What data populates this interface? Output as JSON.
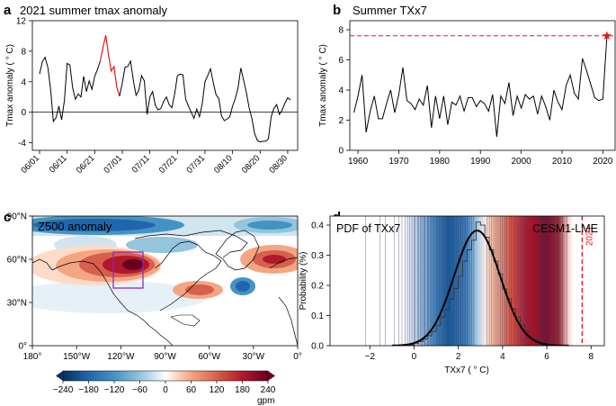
{
  "colors": {
    "line": "#000000",
    "highlight": "#e41a1c",
    "dashed": "#e41a1c",
    "purple_box": "#8b2bc2",
    "vlines": "#3a3a6a",
    "fit": "#000000"
  },
  "chart_data": [
    {
      "panel": "a",
      "type": "line",
      "title": "2021 summer tmax anomaly",
      "ylabel": "Tmax anomaly ( ° C)",
      "xlabel": "",
      "ylim": [
        -5,
        12
      ],
      "yticks": [
        -4,
        0,
        4,
        8,
        12
      ],
      "xticks": [
        "06/01",
        "06/11",
        "06/21",
        "07/01",
        "07/11",
        "07/21",
        "07/31",
        "08/10",
        "08/20",
        "08/30"
      ],
      "xtick_days": [
        1,
        11,
        21,
        31,
        41,
        51,
        61,
        71,
        81,
        91
      ],
      "zero_line": true,
      "days": [
        1,
        2,
        3,
        4,
        5,
        6,
        7,
        8,
        9,
        10,
        11,
        12,
        13,
        14,
        15,
        16,
        17,
        18,
        19,
        20,
        21,
        22,
        23,
        24,
        25,
        26,
        27,
        28,
        29,
        30,
        31,
        32,
        33,
        34,
        35,
        36,
        37,
        38,
        39,
        40,
        41,
        42,
        43,
        44,
        45,
        46,
        47,
        48,
        49,
        50,
        51,
        52,
        53,
        54,
        55,
        56,
        57,
        58,
        59,
        60,
        61,
        62,
        63,
        64,
        65,
        66,
        67,
        68,
        69,
        70,
        71,
        72,
        73,
        74,
        75,
        76,
        77,
        78,
        79,
        80,
        81,
        82,
        83,
        84,
        85,
        86,
        87,
        88,
        89,
        90,
        91,
        92
      ],
      "values": [
        5.0,
        6.6,
        7.2,
        5.9,
        3.0,
        -1.2,
        -0.7,
        0.8,
        -1.0,
        1.5,
        6.4,
        6.2,
        3.2,
        1.7,
        2.4,
        2.0,
        4.7,
        2.7,
        4.1,
        3.0,
        4.7,
        5.6,
        6.7,
        8.5,
        10.1,
        7.5,
        5.4,
        6.0,
        3.3,
        2.1,
        3.8,
        5.9,
        6.0,
        6.7,
        4.2,
        2.2,
        2.9,
        4.8,
        4.1,
        -0.3,
        2.0,
        2.7,
        0.9,
        0.3,
        0.5,
        1.4,
        2.0,
        1.0,
        0.6,
        2.4,
        4.8,
        5.0,
        4.9,
        1.7,
        0.8,
        0.0,
        -0.8,
        0.4,
        -0.6,
        1.1,
        4.0,
        4.8,
        5.7,
        3.9,
        2.3,
        1.8,
        -0.5,
        -1.1,
        -0.9,
        -0.6,
        0.8,
        1.8,
        3.2,
        5.8,
        4.2,
        2.6,
        0.6,
        -0.8,
        -2.8,
        -3.7,
        -3.9,
        -3.8,
        -3.8,
        -3.5,
        -0.6,
        0.5,
        1.0,
        -0.3,
        0.3,
        1.2,
        1.9,
        1.6
      ],
      "highlight_range": [
        22,
        29
      ]
    },
    {
      "panel": "b",
      "type": "line",
      "title": "Summer TXx7",
      "ylabel": "Tmax anomaly ( ° C)",
      "xlabel": "",
      "xlim": [
        1958,
        2023
      ],
      "ylim": [
        0,
        8.6
      ],
      "yticks": [
        0,
        2,
        4,
        6,
        8
      ],
      "xticks": [
        1960,
        1970,
        1980,
        1990,
        2000,
        2010,
        2020
      ],
      "years": [
        1959,
        1960,
        1961,
        1962,
        1963,
        1964,
        1965,
        1966,
        1967,
        1968,
        1969,
        1970,
        1971,
        1972,
        1973,
        1974,
        1975,
        1976,
        1977,
        1978,
        1979,
        1980,
        1981,
        1982,
        1983,
        1984,
        1985,
        1986,
        1987,
        1988,
        1989,
        1990,
        1991,
        1992,
        1993,
        1994,
        1995,
        1996,
        1997,
        1998,
        1999,
        2000,
        2001,
        2002,
        2003,
        2004,
        2005,
        2006,
        2007,
        2008,
        2009,
        2010,
        2011,
        2012,
        2013,
        2014,
        2015,
        2016,
        2017,
        2018,
        2019,
        2020,
        2021
      ],
      "values": [
        2.5,
        3.6,
        5.0,
        1.2,
        2.6,
        3.6,
        2.1,
        2.1,
        3.1,
        4.0,
        2.5,
        3.7,
        5.5,
        3.3,
        3.1,
        2.7,
        3.4,
        3.0,
        4.3,
        1.5,
        3.6,
        2.1,
        3.6,
        1.7,
        3.2,
        3.0,
        3.6,
        2.6,
        3.5,
        3.5,
        2.9,
        3.3,
        3.1,
        2.6,
        3.7,
        0.9,
        3.6,
        3.1,
        4.5,
        2.3,
        3.6,
        2.8,
        3.7,
        3.4,
        3.6,
        2.4,
        3.6,
        2.9,
        2.0,
        4.0,
        3.2,
        2.7,
        4.3,
        5.0,
        3.8,
        3.4,
        6.1,
        5.3,
        4.4,
        3.5,
        3.3,
        3.4,
        7.6
      ],
      "dashed_level": 7.6,
      "star_year": 2021
    },
    {
      "panel": "c",
      "type": "heatmap",
      "title": "Z500 anomaly",
      "colorbar_label": "gpm",
      "colorbar_ticks": [
        "−240",
        "−180",
        "−120",
        "−60",
        "0",
        "60",
        "120",
        "180",
        "240"
      ],
      "lat_ticks": [
        "90°N",
        "60°N",
        "30°N",
        "0°"
      ],
      "lon_ticks": [
        "180°",
        "150°W",
        "120°W",
        "90°W",
        "60°W",
        "30°W",
        "0°"
      ]
    },
    {
      "panel": "d",
      "type": "bar",
      "title": "PDF of TXx7",
      "model_label": "CESM1-LME",
      "ylabel": "Probability (%)",
      "xlabel": "TXx7 ( ° C)",
      "xlim": [
        -3.8,
        8.6
      ],
      "ylim": [
        0,
        0.43
      ],
      "xticks": [
        -2,
        0,
        2,
        4,
        6,
        8
      ],
      "yticks": [
        0,
        0.1,
        0.2,
        0.3,
        0.4
      ],
      "ytick_labels": [
        "0.0",
        "0.1",
        "0.2",
        "0.3",
        "0.4"
      ],
      "bin_edges": [
        -0.2,
        0.0,
        0.2,
        0.4,
        0.6,
        0.8,
        1.0,
        1.2,
        1.4,
        1.6,
        1.8,
        2.0,
        2.2,
        2.4,
        2.6,
        2.8,
        3.0,
        3.2,
        3.4,
        3.6,
        3.8,
        4.0,
        4.2,
        4.4,
        4.6,
        4.8,
        5.0,
        5.2,
        5.4,
        5.6,
        5.8,
        6.0,
        6.2,
        6.4,
        6.6
      ],
      "bin_heights": [
        0.003,
        0.008,
        0.014,
        0.022,
        0.033,
        0.047,
        0.068,
        0.095,
        0.12,
        0.155,
        0.19,
        0.23,
        0.28,
        0.318,
        0.35,
        0.41,
        0.4,
        0.36,
        0.318,
        0.28,
        0.238,
        0.188,
        0.155,
        0.122,
        0.095,
        0.068,
        0.048,
        0.032,
        0.02,
        0.012,
        0.007,
        0.004,
        0.002,
        0.001
      ],
      "fit_mean": 2.85,
      "fit_sd": 1.04,
      "fit_peak": 0.382,
      "event_value": 7.6,
      "event_label": "2021",
      "event_lines": [
        -2.2,
        -1.55,
        -1.3,
        -0.9,
        -0.7,
        -0.55,
        -0.4,
        -0.3,
        -0.2,
        -0.1,
        0.0,
        0.05,
        0.15,
        0.2,
        0.3,
        0.35,
        0.45,
        0.5,
        0.6,
        0.65,
        0.75,
        0.8,
        0.9,
        1.0,
        1.05,
        1.15,
        1.2,
        1.3,
        1.4,
        1.5,
        1.6,
        1.7,
        1.8,
        1.9,
        2.0,
        2.1,
        2.2,
        2.3,
        2.4,
        2.5,
        2.6,
        2.7,
        3.3,
        3.4,
        3.5,
        3.6,
        3.7,
        3.8,
        3.9,
        4.0,
        4.1,
        4.2,
        4.3,
        4.4,
        4.5,
        4.6,
        4.7,
        4.8,
        4.9,
        5.0,
        5.1,
        5.2,
        5.3,
        5.4,
        5.5,
        5.6,
        5.7,
        5.8,
        5.9,
        6.0,
        6.1,
        6.2,
        6.35,
        6.5,
        6.7,
        6.9
      ]
    }
  ],
  "panel_letters": [
    "a",
    "b",
    "c",
    "d"
  ]
}
